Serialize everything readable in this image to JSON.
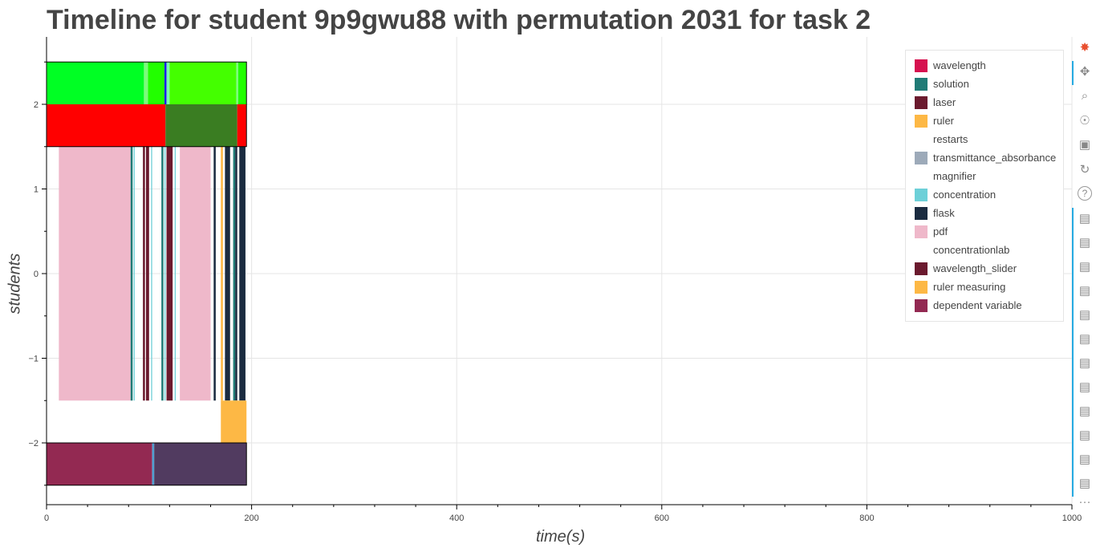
{
  "chart_data": {
    "type": "bar",
    "orientation": "horizontal-timeline",
    "title": "Timeline for student 9p9gwu88 with permutation 2031 for task 2",
    "xlabel": "time(s)",
    "ylabel": "students",
    "xlim": [
      0,
      1000
    ],
    "ylim": [
      -2.75,
      2.75
    ],
    "x_ticks": [
      "0",
      "200",
      "400",
      "600",
      "800",
      "1000"
    ],
    "y_ticks": [
      "2",
      "1",
      "0",
      "−1",
      "−2"
    ],
    "grid": true,
    "legend_position": "top-right",
    "legend": [
      {
        "label": "wavelength",
        "color": "#d6114f"
      },
      {
        "label": "solution",
        "color": "#207b76"
      },
      {
        "label": "laser",
        "color": "#6b1a2e"
      },
      {
        "label": "ruler",
        "color": "#fdb845"
      },
      {
        "label": "restarts",
        "color": "#ffffff"
      },
      {
        "label": "transmittance_absorbance",
        "color": "#9daab9"
      },
      {
        "label": "magnifier",
        "color": "#ffffff"
      },
      {
        "label": "concentration",
        "color": "#6dd0d8"
      },
      {
        "label": "flask",
        "color": "#1a2b40"
      },
      {
        "label": "pdf",
        "color": "#efb8ca"
      },
      {
        "label": "concentrationlab",
        "color": "#ffffff"
      },
      {
        "label": "wavelength_slider",
        "color": "#6b1a2e"
      },
      {
        "label": "ruler measuring",
        "color": "#fdb845"
      },
      {
        "label": "dependent variable",
        "color": "#932952"
      }
    ],
    "rows": [
      {
        "y_top": 2.5,
        "y_bottom": 2.0,
        "segments": [
          {
            "start": 0,
            "end": 95,
            "color": "#00ff24"
          },
          {
            "start": 95,
            "end": 99,
            "color": "#7cfc7c"
          },
          {
            "start": 99,
            "end": 115,
            "color": "#22ff00"
          },
          {
            "start": 115,
            "end": 117,
            "color": "#1c1cff"
          },
          {
            "start": 117,
            "end": 120,
            "color": "#7cfcb0"
          },
          {
            "start": 120,
            "end": 185,
            "color": "#44ff00"
          },
          {
            "start": 185,
            "end": 187,
            "color": "#7cfc7c"
          },
          {
            "start": 187,
            "end": 195,
            "color": "#22ff00"
          }
        ]
      },
      {
        "y_top": 2.0,
        "y_bottom": 1.5,
        "segments": [
          {
            "start": 0,
            "end": 116,
            "color": "#ff0000"
          },
          {
            "start": 116,
            "end": 186,
            "color": "#3a7d22"
          },
          {
            "start": 186,
            "end": 195,
            "color": "#ff0000"
          }
        ]
      },
      {
        "y_top": 1.5,
        "y_bottom": -1.5,
        "segments": [
          {
            "start": 12,
            "end": 82,
            "color": "#efb8ca"
          },
          {
            "start": 82,
            "end": 84,
            "color": "#207b76"
          },
          {
            "start": 85,
            "end": 86,
            "color": "#6dd0d8"
          },
          {
            "start": 94,
            "end": 96,
            "color": "#6b1a2e"
          },
          {
            "start": 97,
            "end": 100,
            "color": "#6b1a2e"
          },
          {
            "start": 102,
            "end": 103,
            "color": "#6dd0d8"
          },
          {
            "start": 112,
            "end": 114,
            "color": "#207b76"
          },
          {
            "start": 115,
            "end": 116,
            "color": "#6dd0d8"
          },
          {
            "start": 117,
            "end": 123,
            "color": "#6b1a2e"
          },
          {
            "start": 125,
            "end": 126,
            "color": "#6dd0d8"
          },
          {
            "start": 130,
            "end": 160,
            "color": "#efb8ca"
          },
          {
            "start": 163,
            "end": 165,
            "color": "#1a2b40"
          },
          {
            "start": 170,
            "end": 172,
            "color": "#fdb845"
          },
          {
            "start": 174,
            "end": 179,
            "color": "#1a2b40"
          },
          {
            "start": 182,
            "end": 184,
            "color": "#207b76"
          },
          {
            "start": 184,
            "end": 186,
            "color": "#1a2b40"
          },
          {
            "start": 188,
            "end": 194,
            "color": "#1a2b40"
          }
        ]
      },
      {
        "y_top": -1.5,
        "y_bottom": -2.0,
        "segments": [
          {
            "start": 170,
            "end": 195,
            "color": "#fdb845"
          }
        ]
      },
      {
        "y_top": -2.0,
        "y_bottom": -2.5,
        "segments": [
          {
            "start": 0,
            "end": 103,
            "color": "#932952"
          },
          {
            "start": 103,
            "end": 105,
            "color": "#4f9fd1"
          },
          {
            "start": 105,
            "end": 195,
            "color": "#513b60"
          }
        ]
      }
    ],
    "outline_x_end": 195
  },
  "toolbar": {
    "icons": [
      "bokeh-logo-icon",
      "pan-icon",
      "box-zoom-icon",
      "wheel-zoom-icon",
      "save-icon",
      "reset-icon",
      "help-icon",
      "hover-icon",
      "hover-icon",
      "hover-icon",
      "hover-icon",
      "hover-icon",
      "hover-icon",
      "hover-icon",
      "hover-icon",
      "hover-icon",
      "hover-icon",
      "hover-icon",
      "hover-icon",
      "more-icon"
    ],
    "more_label": "···"
  }
}
